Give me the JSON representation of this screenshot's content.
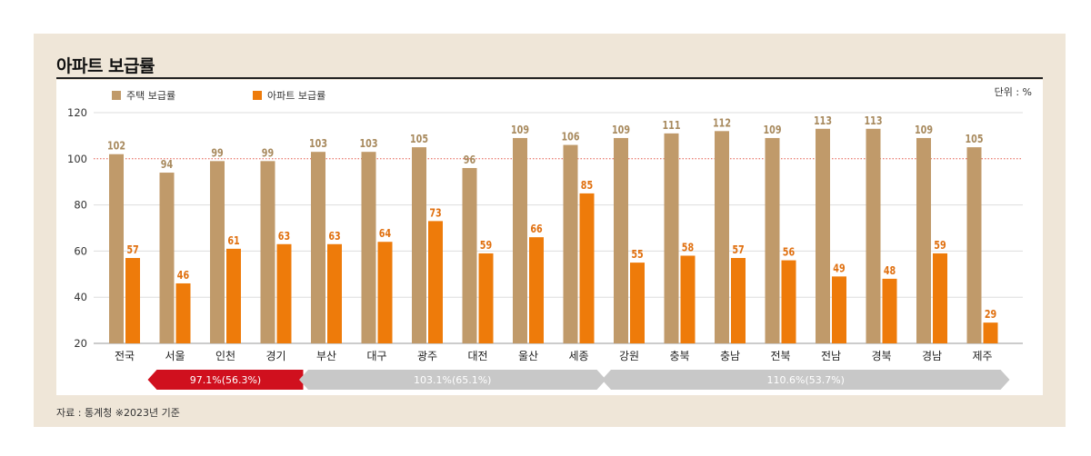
{
  "title": "아파트 보급률",
  "unit": "단위 : %",
  "source": "자료 : 통계청 ※2023년 기준",
  "colors": {
    "housing": "#c09a6a",
    "apartment": "#ee7b0a",
    "capital_banner": "#d0101e",
    "region_banner": "#c8c8c8",
    "frame": "#efe6d8",
    "gridline": "#dddddd",
    "ref_line": "#e4594a"
  },
  "banners": [
    {
      "label": "97.1%(56.3%)",
      "start": 1,
      "end": 3,
      "color": "#d0101e",
      "text_color": "#ffffff"
    },
    {
      "label": "103.1%(65.1%)",
      "start": 4,
      "end": 9,
      "color": "#c8c8c8",
      "text_color": "#ffffff"
    },
    {
      "label": "110.6%(53.7%)",
      "start": 10,
      "end": 17,
      "color": "#c8c8c8",
      "text_color": "#ffffff"
    }
  ],
  "chart_data": {
    "type": "bar",
    "categories": [
      "전국",
      "서울",
      "인천",
      "경기",
      "부산",
      "대구",
      "광주",
      "대전",
      "울산",
      "세종",
      "강원",
      "충북",
      "충남",
      "전북",
      "전남",
      "경북",
      "경남",
      "제주"
    ],
    "series": [
      {
        "name": "주택 보급률",
        "color": "#c09a6a",
        "values": [
          102,
          94,
          99,
          99,
          103,
          103,
          105,
          96,
          109,
          106,
          109,
          111,
          112,
          109,
          113,
          113,
          109,
          105
        ]
      },
      {
        "name": "아파트 보급률",
        "color": "#ee7b0a",
        "values": [
          57,
          46,
          61,
          63,
          63,
          64,
          73,
          59,
          66,
          85,
          55,
          58,
          57,
          56,
          49,
          48,
          59,
          29
        ]
      }
    ],
    "ylim": [
      20,
      120
    ],
    "yticks": [
      20,
      40,
      60,
      80,
      100,
      120
    ],
    "reference_line": 100,
    "grid": true,
    "legend_position": "top-left"
  }
}
